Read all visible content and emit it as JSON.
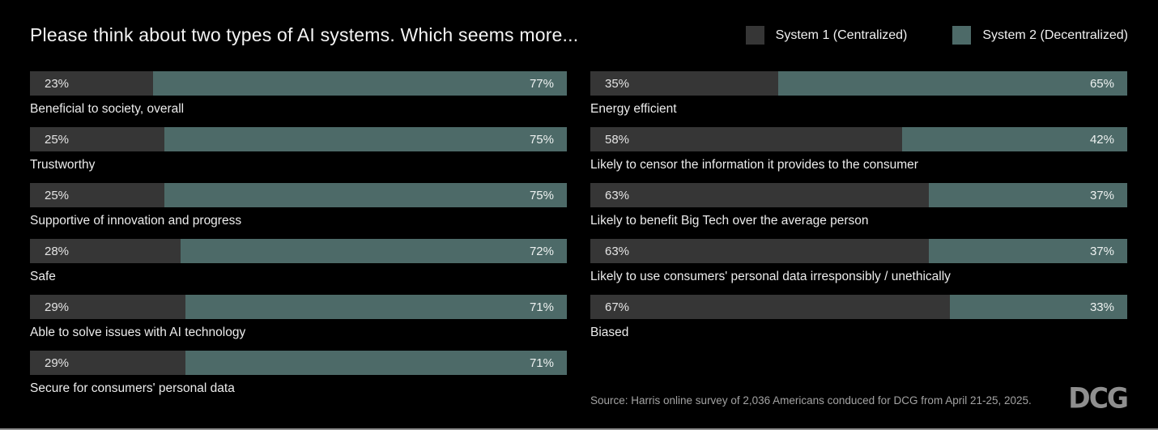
{
  "header": {
    "title": "Please think about two types of AI systems. Which seems more..."
  },
  "legend": {
    "items": [
      {
        "label": "System 1 (Centralized)",
        "color": "#363636"
      },
      {
        "label": "System 2 (Decentralized)",
        "color": "#4d6a68"
      }
    ]
  },
  "chart_data": {
    "type": "bar",
    "variant": "horizontal-stacked-100-percent-paired",
    "title": "Please think about two types of AI systems. Which seems more...",
    "unit": "%",
    "series_names": [
      "System 1 (Centralized)",
      "System 2 (Decentralized)"
    ],
    "colors": {
      "system1": "#363636",
      "system2": "#4d6a68"
    },
    "legend_position": "top-right",
    "columns": [
      {
        "rows": [
          {
            "label": "Beneficial to society, overall",
            "system1": 23,
            "system2": 77
          },
          {
            "label": "Trustworthy",
            "system1": 25,
            "system2": 75
          },
          {
            "label": "Supportive of innovation and progress",
            "system1": 25,
            "system2": 75
          },
          {
            "label": "Safe",
            "system1": 28,
            "system2": 72
          },
          {
            "label": "Able to solve issues with AI technology",
            "system1": 29,
            "system2": 71
          },
          {
            "label": "Secure for consumers' personal data",
            "system1": 29,
            "system2": 71
          }
        ]
      },
      {
        "rows": [
          {
            "label": "Energy efficient",
            "system1": 35,
            "system2": 65
          },
          {
            "label": "Likely to censor the information it provides to the consumer",
            "system1": 58,
            "system2": 42
          },
          {
            "label": "Likely to benefit Big Tech over the average person",
            "system1": 63,
            "system2": 37
          },
          {
            "label": "Likely to use consumers' personal data irresponsibly / unethically",
            "system1": 63,
            "system2": 37
          },
          {
            "label": "Biased",
            "system1": 67,
            "system2": 33
          }
        ]
      }
    ]
  },
  "footer": {
    "source": "Source: Harris online survey of 2,036 Americans conduced for DCG from April 21-25, 2025.",
    "logo_text": "DCG"
  }
}
